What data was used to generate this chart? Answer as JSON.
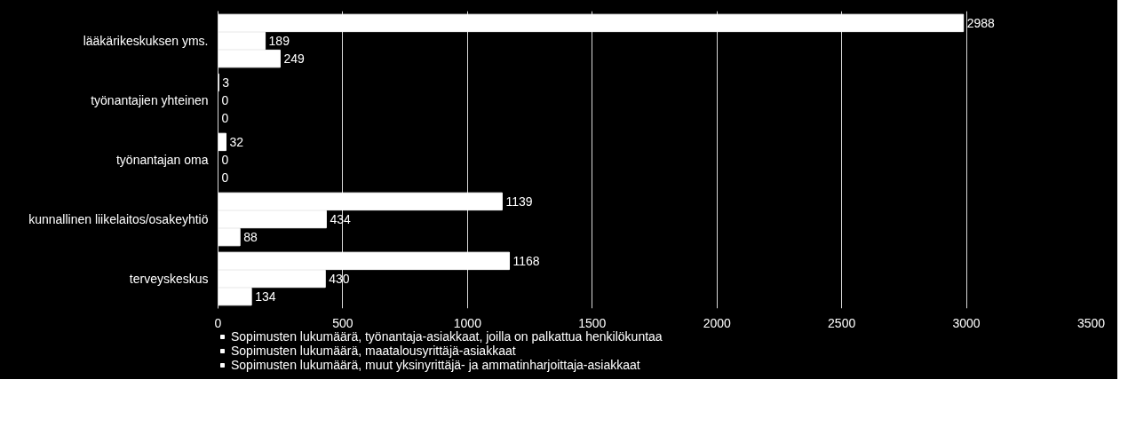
{
  "chart_data": {
    "type": "bar",
    "orientation": "horizontal",
    "categories": [
      "lääkärikeskuksen yms.",
      "työnantajien yhteinen",
      "työnantajan oma",
      "kunnallinen liikelaitos/osakeyhtiö",
      "terveyskeskus"
    ],
    "series": [
      {
        "name": "Sopimusten lukumäärä, työnantaja-asiakkaat, joilla on palkattua henkilökuntaa",
        "color": "#ffffff",
        "values": [
          2988,
          3,
          32,
          1139,
          1168
        ]
      },
      {
        "name": "Sopimusten lukumäärä, maatalousyrittäjä-asiakkaat",
        "color": "#ffffff",
        "values": [
          189,
          0,
          0,
          434,
          430
        ]
      },
      {
        "name": "Sopimusten lukumäärä, muut yksinyrittäjä- ja ammatinharjoittaja-asiakkaat",
        "color": "#ffffff",
        "values": [
          249,
          0,
          0,
          88,
          134
        ]
      }
    ],
    "xlim": [
      0,
      3500
    ],
    "xticks": [
      0,
      500,
      1000,
      1500,
      2000,
      2500,
      3000,
      3500
    ],
    "grid": "x",
    "legend": "bottom",
    "data_labels": true
  }
}
